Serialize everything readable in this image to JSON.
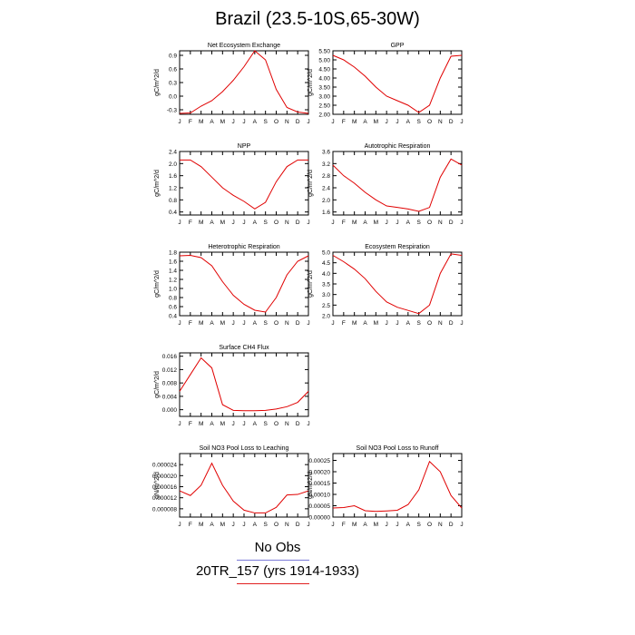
{
  "title": "Brazil (23.5-10S,65-30W)",
  "legend": {
    "obs_label": "No Obs",
    "run_label": "20TR_157 (yrs 1914-1933)",
    "obs_color": "#7b7bd8",
    "run_color": "#e02020"
  },
  "colors": {
    "line": "#e00000",
    "axis": "#000000"
  },
  "chart_data": [
    {
      "type": "line",
      "title": "Net Ecosystem Exchange",
      "ylabel": "gC/m^2/d",
      "categories": [
        "J",
        "F",
        "M",
        "A",
        "M",
        "J",
        "J",
        "A",
        "S",
        "O",
        "N",
        "D",
        "J"
      ],
      "ylim": [
        -0.4,
        1.0
      ],
      "yticks": [
        -0.3,
        0.0,
        0.3,
        0.6,
        0.9
      ],
      "ytick_labels": [
        "-0.3",
        "0.0",
        "0.3",
        "0.6",
        "0.9"
      ],
      "series": [
        {
          "values": [
            -0.38,
            -0.37,
            -0.22,
            -0.1,
            0.1,
            0.35,
            0.65,
            1.0,
            0.8,
            0.15,
            -0.25,
            -0.35,
            -0.38
          ]
        }
      ]
    },
    {
      "type": "line",
      "title": "GPP",
      "ylabel": "gC/m^2/d",
      "categories": [
        "J",
        "F",
        "M",
        "A",
        "M",
        "J",
        "J",
        "A",
        "S",
        "O",
        "N",
        "D",
        "J"
      ],
      "ylim": [
        2.0,
        5.5
      ],
      "yticks": [
        2.0,
        2.5,
        3.0,
        3.5,
        4.0,
        4.5,
        5.0,
        5.5
      ],
      "ytick_labels": [
        "2.00",
        "2.50",
        "3.00",
        "3.50",
        "4.00",
        "4.50",
        "5.00",
        "5.50"
      ],
      "series": [
        {
          "values": [
            5.25,
            5.0,
            4.6,
            4.1,
            3.5,
            3.0,
            2.75,
            2.5,
            2.1,
            2.5,
            4.0,
            5.2,
            5.25
          ]
        }
      ]
    },
    {
      "type": "line",
      "title": "NPP",
      "ylabel": "gC/m^2/d",
      "categories": [
        "J",
        "F",
        "M",
        "A",
        "M",
        "J",
        "J",
        "A",
        "S",
        "O",
        "N",
        "D",
        "J"
      ],
      "ylim": [
        0.3,
        2.4
      ],
      "yticks": [
        0.4,
        0.8,
        1.2,
        1.6,
        2.0,
        2.4
      ],
      "ytick_labels": [
        "0.4",
        "0.8",
        "1.2",
        "1.6",
        "2.0",
        "2.4"
      ],
      "series": [
        {
          "values": [
            2.12,
            2.12,
            1.9,
            1.55,
            1.2,
            0.95,
            0.75,
            0.5,
            0.72,
            1.4,
            1.9,
            2.12,
            2.12
          ]
        }
      ]
    },
    {
      "type": "line",
      "title": "Autotrophic Respiration",
      "ylabel": "gC/m^2/d",
      "categories": [
        "J",
        "F",
        "M",
        "A",
        "M",
        "J",
        "J",
        "A",
        "S",
        "O",
        "N",
        "D",
        "J"
      ],
      "ylim": [
        1.5,
        3.6
      ],
      "yticks": [
        1.6,
        2.0,
        2.4,
        2.8,
        3.2,
        3.6
      ],
      "ytick_labels": [
        "1.6",
        "2.0",
        "2.4",
        "2.8",
        "3.2",
        "3.6"
      ],
      "series": [
        {
          "values": [
            3.15,
            2.8,
            2.55,
            2.25,
            2.0,
            1.8,
            1.75,
            1.7,
            1.62,
            1.75,
            2.75,
            3.35,
            3.15
          ]
        }
      ]
    },
    {
      "type": "line",
      "title": "Heterotrophic Respiration",
      "ylabel": "gC/m^2/d",
      "categories": [
        "J",
        "F",
        "M",
        "A",
        "M",
        "J",
        "J",
        "A",
        "S",
        "O",
        "N",
        "D",
        "J"
      ],
      "ylim": [
        0.4,
        1.8
      ],
      "yticks": [
        0.4,
        0.6,
        0.8,
        1.0,
        1.2,
        1.4,
        1.6,
        1.8
      ],
      "ytick_labels": [
        "0.4",
        "0.6",
        "0.8",
        "1.0",
        "1.2",
        "1.4",
        "1.6",
        "1.8"
      ],
      "series": [
        {
          "values": [
            1.72,
            1.73,
            1.68,
            1.5,
            1.15,
            0.85,
            0.65,
            0.52,
            0.48,
            0.8,
            1.3,
            1.6,
            1.72
          ]
        }
      ]
    },
    {
      "type": "line",
      "title": "Ecosystem Respiration",
      "ylabel": "gC/m^2/d",
      "categories": [
        "J",
        "F",
        "M",
        "A",
        "M",
        "J",
        "J",
        "A",
        "S",
        "O",
        "N",
        "D",
        "J"
      ],
      "ylim": [
        2.0,
        5.0
      ],
      "yticks": [
        2.0,
        2.5,
        3.0,
        3.5,
        4.0,
        4.5,
        5.0
      ],
      "ytick_labels": [
        "2.0",
        "2.5",
        "3.0",
        "3.5",
        "4.0",
        "4.5",
        "5.0"
      ],
      "series": [
        {
          "values": [
            4.85,
            4.55,
            4.2,
            3.75,
            3.15,
            2.65,
            2.4,
            2.25,
            2.1,
            2.5,
            4.0,
            4.92,
            4.85
          ]
        }
      ]
    },
    {
      "type": "line",
      "title": "Surface CH4 Flux",
      "ylabel": "gC/m^2/d",
      "categories": [
        "J",
        "F",
        "M",
        "A",
        "M",
        "J",
        "J",
        "A",
        "S",
        "O",
        "N",
        "D",
        "J"
      ],
      "ylim": [
        -0.002,
        0.017
      ],
      "yticks": [
        0.0,
        0.004,
        0.008,
        0.012,
        0.016
      ],
      "ytick_labels": [
        "0.000",
        "0.004",
        "0.008",
        "0.012",
        "0.016"
      ],
      "series": [
        {
          "values": [
            0.0055,
            0.0105,
            0.0155,
            0.0125,
            0.0015,
            -0.0002,
            -0.0003,
            -0.0003,
            -0.0002,
            0.0002,
            0.0009,
            0.0022,
            0.0055
          ]
        }
      ]
    },
    {
      "type": "line",
      "title": "Soil NO3 Pool Loss to Leaching",
      "ylabel": "gN/m^2/d",
      "categories": [
        "J",
        "F",
        "M",
        "A",
        "M",
        "J",
        "J",
        "A",
        "S",
        "O",
        "N",
        "D",
        "J"
      ],
      "ylim": [
        5e-06,
        2.8e-05
      ],
      "yticks": [
        8e-06,
        1.2e-05,
        1.6e-05,
        2e-05,
        2.4e-05
      ],
      "ytick_labels": [
        "0.000008",
        "0.000012",
        "0.000016",
        "0.000020",
        "0.000024"
      ],
      "series": [
        {
          "values": [
            1.45e-05,
            1.28e-05,
            1.65e-05,
            2.45e-05,
            1.65e-05,
            1.08e-05,
            7.5e-06,
            6.5e-06,
            6.5e-06,
            8.5e-06,
            1.3e-05,
            1.32e-05,
            1.45e-05
          ]
        }
      ]
    },
    {
      "type": "line",
      "title": "Soil NO3 Pool Loss to Runoff",
      "ylabel": "gN/m^2/d",
      "categories": [
        "J",
        "F",
        "M",
        "A",
        "M",
        "J",
        "J",
        "A",
        "S",
        "O",
        "N",
        "D",
        "J"
      ],
      "ylim": [
        0.0,
        0.00028
      ],
      "yticks": [
        0.0,
        5e-05,
        0.0001,
        0.00015,
        0.0002,
        0.00025
      ],
      "ytick_labels": [
        "0.00000",
        "0.00005",
        "0.00010",
        "0.00015",
        "0.00020",
        "0.00025"
      ],
      "series": [
        {
          "values": [
            4e-05,
            4.2e-05,
            5e-05,
            2.8e-05,
            2.5e-05,
            2.7e-05,
            3e-05,
            5.5e-05,
            0.00012,
            0.000245,
            0.0002,
            9.5e-05,
            4e-05
          ]
        }
      ]
    }
  ]
}
